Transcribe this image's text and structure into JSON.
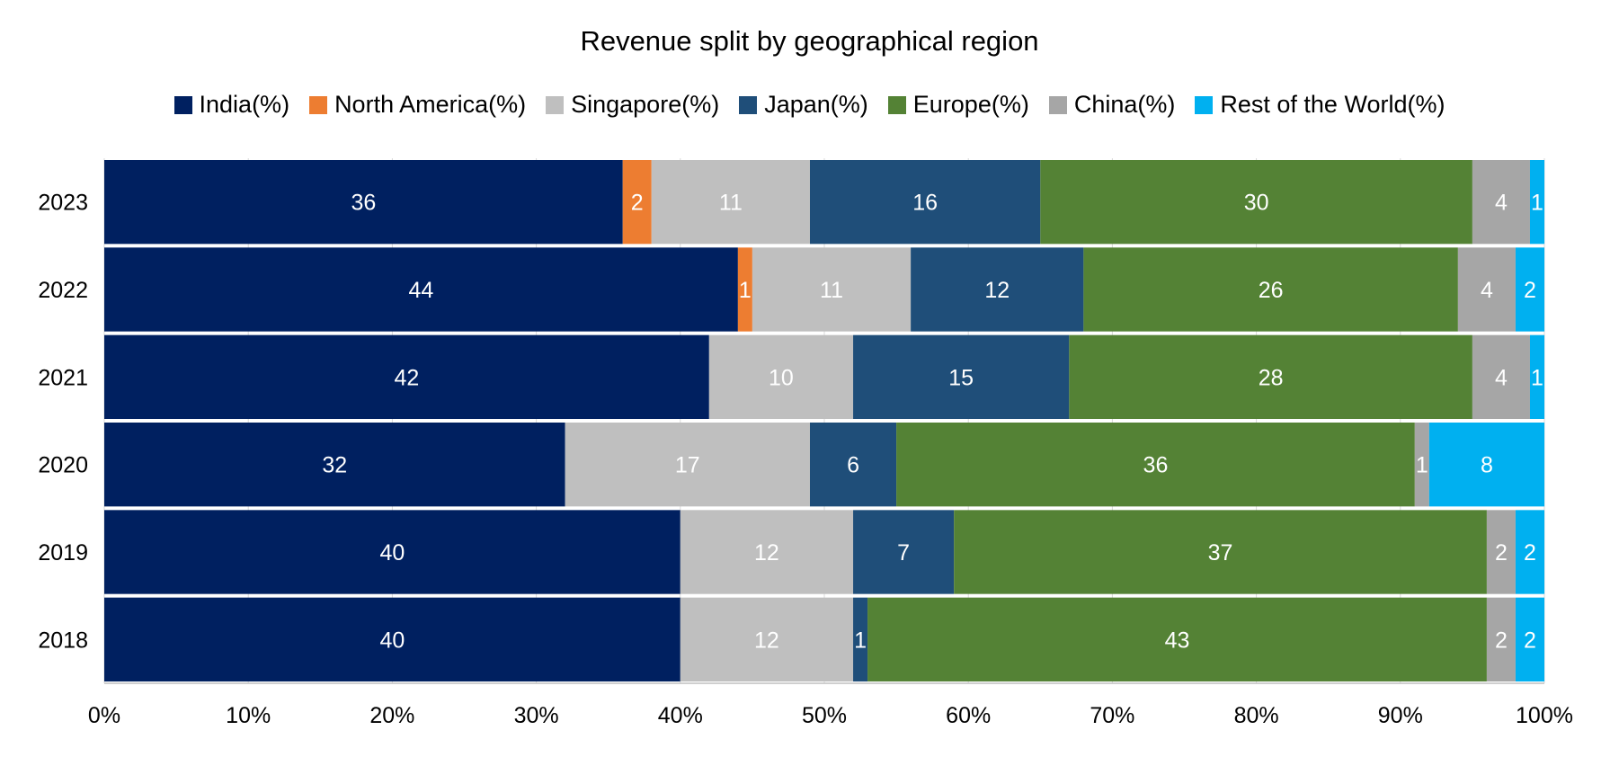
{
  "chart_data": {
    "type": "bar",
    "orientation": "horizontal",
    "stacked": "percent",
    "title": "Revenue split by geographical region",
    "legend_position": "top",
    "grid": true,
    "categories": [
      "2023",
      "2022",
      "2021",
      "2020",
      "2019",
      "2018"
    ],
    "series": [
      {
        "name": "India(%)",
        "color": "#002060",
        "values": [
          36,
          44,
          42,
          32,
          40,
          40
        ]
      },
      {
        "name": "North America(%)",
        "color": "#ED7D31",
        "values": [
          2,
          1,
          null,
          null,
          null,
          null
        ]
      },
      {
        "name": "Singapore(%)",
        "color": "#BFBFBF",
        "values": [
          11,
          11,
          10,
          17,
          12,
          12
        ]
      },
      {
        "name": "Japan(%)",
        "color": "#1F4E79",
        "values": [
          16,
          12,
          15,
          6,
          7,
          1
        ]
      },
      {
        "name": "Europe(%)",
        "color": "#548235",
        "values": [
          30,
          26,
          28,
          36,
          37,
          43
        ]
      },
      {
        "name": "China(%)",
        "color": "#A6A6A6",
        "values": [
          4,
          4,
          4,
          1,
          2,
          2
        ]
      },
      {
        "name": "Rest of the World(%)",
        "color": "#00B0F0",
        "values": [
          1,
          2,
          1,
          8,
          2,
          2
        ]
      }
    ],
    "xlim": [
      0,
      100
    ],
    "x_ticks": [
      "0%",
      "10%",
      "20%",
      "30%",
      "40%",
      "50%",
      "60%",
      "70%",
      "80%",
      "90%",
      "100%"
    ]
  }
}
